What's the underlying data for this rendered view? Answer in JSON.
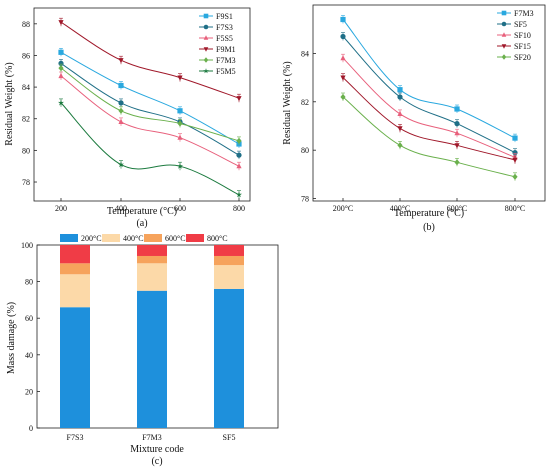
{
  "chart_data": [
    {
      "type": "line",
      "panel": "(a)",
      "xlabel": "Temperature (°C)",
      "ylabel": "Residual Weight (%)",
      "x": [
        200,
        400,
        600,
        800
      ],
      "xticks": [
        "200",
        "400",
        "600",
        "800"
      ],
      "yticks": [
        "78",
        "80",
        "82",
        "84",
        "86",
        "88"
      ],
      "ylim": [
        76.8,
        89.0
      ],
      "legend_position": "top-right",
      "series": [
        {
          "name": "F9S1",
          "values": [
            86.2,
            84.1,
            82.5,
            80.4
          ],
          "color": "#29a8df",
          "marker": "square"
        },
        {
          "name": "F7S3",
          "values": [
            85.5,
            83.0,
            81.8,
            79.7
          ],
          "color": "#1f6f87",
          "marker": "circle"
        },
        {
          "name": "F5S5",
          "values": [
            84.7,
            81.8,
            80.8,
            79.0
          ],
          "color": "#e8607c",
          "marker": "triangle"
        },
        {
          "name": "F9M1",
          "values": [
            88.1,
            85.7,
            84.6,
            83.3
          ],
          "color": "#a0182a",
          "marker": "triangle-down"
        },
        {
          "name": "F7M3",
          "values": [
            85.2,
            82.5,
            81.7,
            80.6
          ],
          "color": "#6ab04c",
          "marker": "diamond"
        },
        {
          "name": "F5M5",
          "values": [
            83.0,
            79.1,
            79.0,
            77.2
          ],
          "color": "#1b7a3e",
          "marker": "star"
        }
      ]
    },
    {
      "type": "line",
      "panel": "(b)",
      "xlabel": "Temperature (°C)",
      "ylabel": "Residual Weight (%)",
      "categories": [
        "200°C",
        "400°C",
        "600°C",
        "800°C"
      ],
      "yticks": [
        "78",
        "80",
        "82",
        "84"
      ],
      "ylim": [
        77.9,
        86.0
      ],
      "legend_position": "top-right",
      "series": [
        {
          "name": "F7M3",
          "values": [
            85.4,
            82.5,
            81.7,
            80.5
          ],
          "color": "#29a8df",
          "marker": "square"
        },
        {
          "name": "SF5",
          "values": [
            84.7,
            82.2,
            81.1,
            79.9
          ],
          "color": "#1f6f87",
          "marker": "circle"
        },
        {
          "name": "SF10",
          "values": [
            83.8,
            81.5,
            80.7,
            79.7
          ],
          "color": "#e8607c",
          "marker": "triangle"
        },
        {
          "name": "SF15",
          "values": [
            83.0,
            80.9,
            80.2,
            79.6
          ],
          "color": "#a0182a",
          "marker": "triangle-down"
        },
        {
          "name": "SF20",
          "values": [
            82.2,
            80.2,
            79.5,
            78.9
          ],
          "color": "#6ab04c",
          "marker": "diamond"
        }
      ]
    },
    {
      "type": "bar",
      "stacked": true,
      "panel": "(c)",
      "xlabel": "Mixture code",
      "ylabel": "Mass damage (%)",
      "categories": [
        "F7S3",
        "F7M3",
        "SF5"
      ],
      "yticks": [
        "0",
        "20",
        "40",
        "60",
        "80",
        "100"
      ],
      "ylim": [
        0,
        100
      ],
      "legend_position": "top",
      "series": [
        {
          "name": "200°C",
          "values": [
            66,
            75,
            76
          ],
          "color": "#1e90dc"
        },
        {
          "name": "400°C",
          "values": [
            18,
            15,
            13
          ],
          "color": "#fcd9a8"
        },
        {
          "name": "600°C",
          "values": [
            6,
            4,
            5
          ],
          "color": "#f6a35c"
        },
        {
          "name": "800°C",
          "values": [
            10,
            6,
            6
          ],
          "color": "#f03c46"
        }
      ]
    }
  ]
}
